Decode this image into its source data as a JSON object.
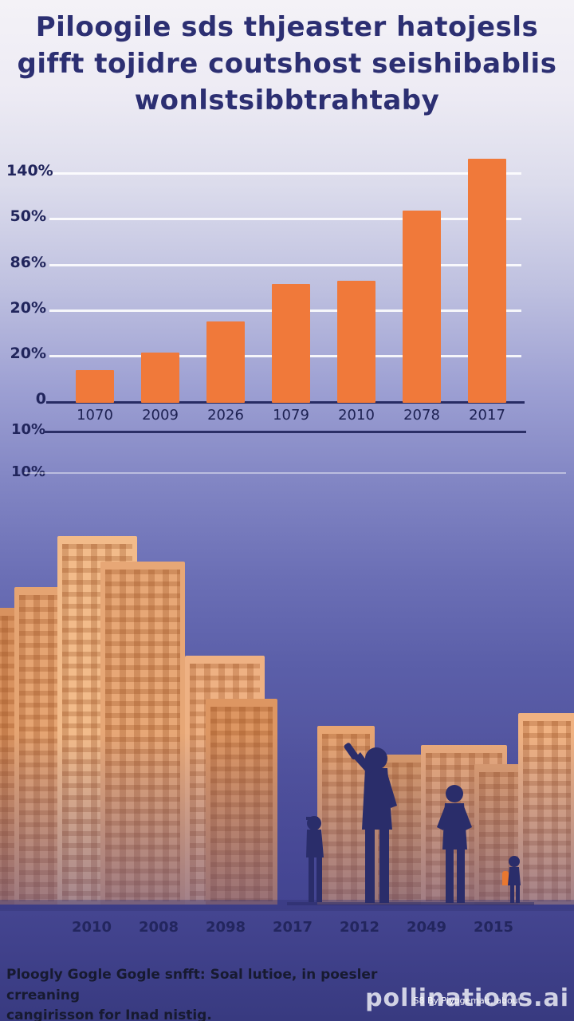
{
  "title": {
    "line1": "Piloogile sds thjeaster hatojesls",
    "line2": "gifft tojidre coutshost seishibablis",
    "line3": "wonlstsibbtrahtaby"
  },
  "chart_data": {
    "type": "bar",
    "title": "Piloogile sds thjeaster hatojesls gifft tojidre coutshost seishibablis wonlstsibbtrahtaby",
    "categories": [
      "1070",
      "2009",
      "2026",
      "1079",
      "2010",
      "2078",
      "2017"
    ],
    "values": [
      20,
      31,
      50,
      73,
      75,
      118,
      150
    ],
    "ylim": [
      0,
      152
    ],
    "y_tick_labels": [
      "140%",
      "50%",
      "86%",
      "20%",
      "20%",
      "0"
    ],
    "below_axis_labels": [
      "10%",
      "10%"
    ],
    "xlabel": "",
    "ylabel": "",
    "grid": true,
    "legend": "none",
    "bar_color": "#f0793a"
  },
  "bottom_axis": {
    "labels": [
      "2010",
      "2008",
      "2098",
      "2017",
      "2012",
      "2049",
      "2015"
    ]
  },
  "footer": {
    "line1": "Ploogly Gogle Gogle snfft: Soal lutioe, in poesler crreaning",
    "line2": "cangirisson for Inad nistig."
  },
  "watermark": {
    "brand": "pollinations.ai",
    "sub": "S8 By Plyogemair, about"
  },
  "colors": {
    "accent_orange": "#f0793a",
    "title_navy": "#2c2f72",
    "silhouette_navy": "#2a2d6a",
    "building_salmon": "#e7a776",
    "sky_top": "#f4f2f7",
    "sky_bottom": "#383a80"
  }
}
